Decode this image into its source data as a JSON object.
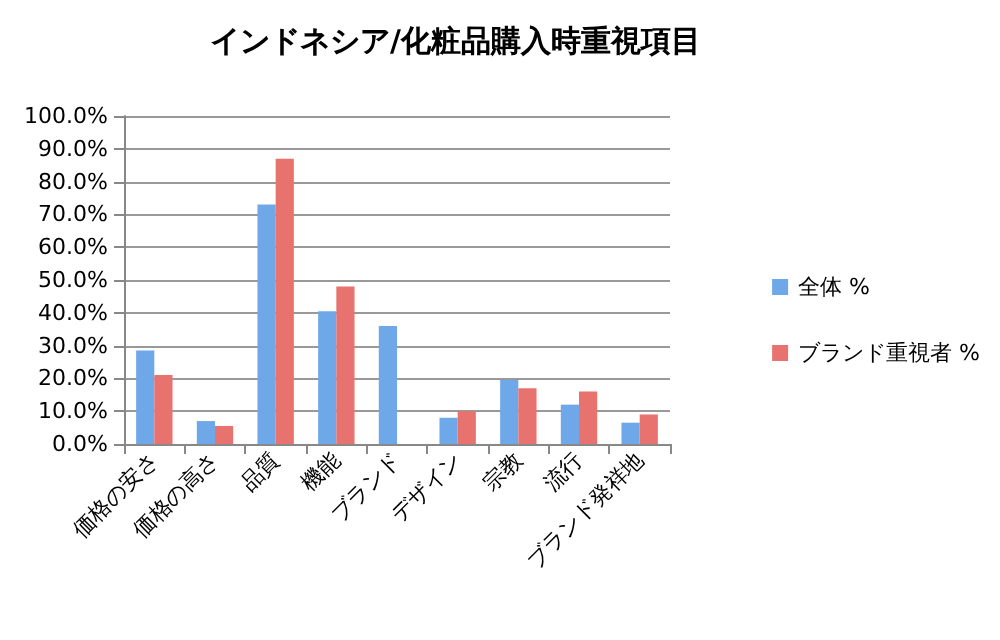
{
  "chart_data": {
    "type": "bar",
    "title": "インドネシア/化粧品購入時重視項目",
    "categories": [
      "価格の安さ",
      "価格の高さ",
      "品質",
      "機能",
      "ブランド",
      "デザイン",
      "宗教",
      "流行",
      "ブランド発祥地"
    ],
    "series": [
      {
        "name": "全体 %",
        "color": "#6fa8e8",
        "values": [
          28.5,
          7,
          73,
          40.5,
          36,
          8,
          19.5,
          12,
          6.5
        ]
      },
      {
        "name": "ブランド重視者 %",
        "color": "#e8736e",
        "values": [
          21,
          5.5,
          87,
          48,
          0,
          10,
          17,
          16,
          9
        ]
      }
    ],
    "ylim": [
      0,
      100
    ],
    "yticks": [
      {
        "value": 0,
        "label": "0.0%"
      },
      {
        "value": 10,
        "label": "10.0%"
      },
      {
        "value": 20,
        "label": "20.0%"
      },
      {
        "value": 30,
        "label": "30.0%"
      },
      {
        "value": 40,
        "label": "40.0%"
      },
      {
        "value": 50,
        "label": "50.0%"
      },
      {
        "value": 60,
        "label": "60.0%"
      },
      {
        "value": 70,
        "label": "70.0%"
      },
      {
        "value": 80,
        "label": "80.0%"
      },
      {
        "value": 90,
        "label": "90.0%"
      },
      {
        "value": 100,
        "label": "100.0%"
      }
    ],
    "grid": "y",
    "legend": "right"
  }
}
